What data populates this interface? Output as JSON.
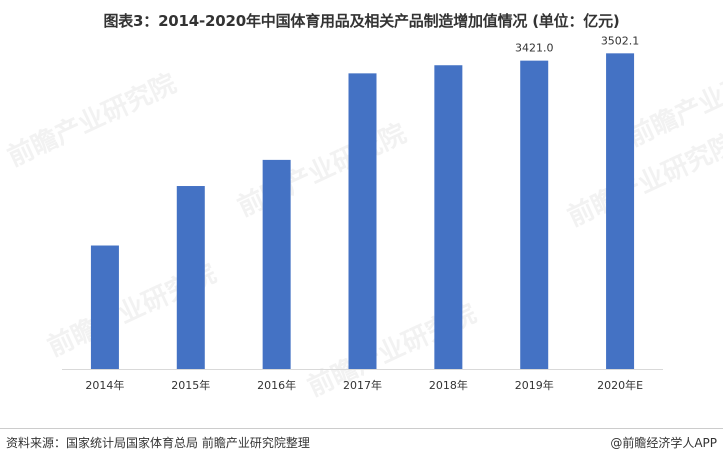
{
  "title": "图表3：2014-2020年中国体育用品及相关产品制造增加值情况 (单位：亿元)",
  "source": "资料来源：国家统计局国家体育总局 前瞻产业研究院整理",
  "brand": "@前瞻经济学人APP",
  "watermark_text": "前瞻产业研究院",
  "colors": {
    "bar": "#4472c4",
    "axis": "#d9d9d9",
    "text": "#333333"
  },
  "chart_data": {
    "type": "bar",
    "title": "图表3：2014-2020年中国体育用品及相关产品制造增加值情况 (单位：亿元)",
    "xlabel": "",
    "ylabel": "",
    "categories": [
      "2014年",
      "2015年",
      "2016年",
      "2017年",
      "2018年",
      "2019年",
      "2020年E"
    ],
    "values": [
      1370,
      2030,
      2320,
      3280,
      3370,
      3421.0,
      3502.1
    ],
    "data_labels": [
      "",
      "",
      "",
      "",
      "",
      "3421.0",
      "3502.1"
    ],
    "ylim": [
      0,
      3650
    ],
    "grid": false,
    "legend": "none"
  }
}
